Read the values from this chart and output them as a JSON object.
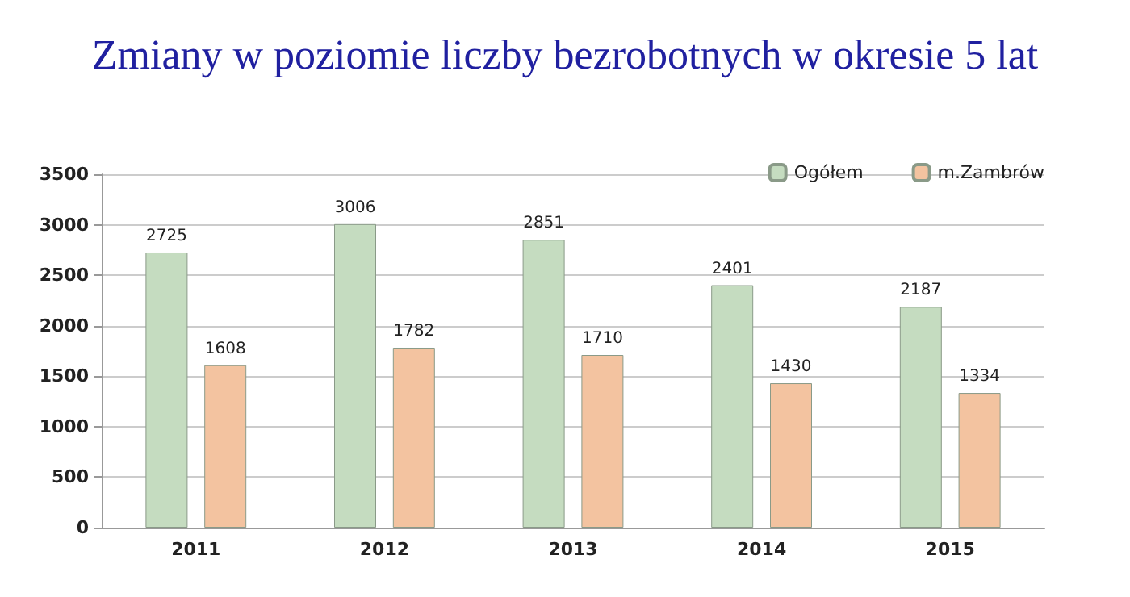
{
  "chart_data": {
    "type": "bar",
    "title": "Zmiany w poziomie liczby bezrobotnych w okresie 5 lat",
    "categories": [
      "2011",
      "2012",
      "2013",
      "2014",
      "2015"
    ],
    "series": [
      {
        "name": "Ogółem",
        "color": "#c5dcc0",
        "values": [
          2725,
          3006,
          2851,
          2401,
          2187
        ]
      },
      {
        "name": "m.Zambrów",
        "color": "#f3c3a0",
        "values": [
          1608,
          1782,
          1710,
          1430,
          1334
        ]
      }
    ],
    "ylim": [
      0,
      3500
    ],
    "yticks": [
      0,
      500,
      1000,
      1500,
      2000,
      2500,
      3000,
      3500
    ],
    "grid": "y",
    "legend": "top right",
    "data_labels": true
  }
}
